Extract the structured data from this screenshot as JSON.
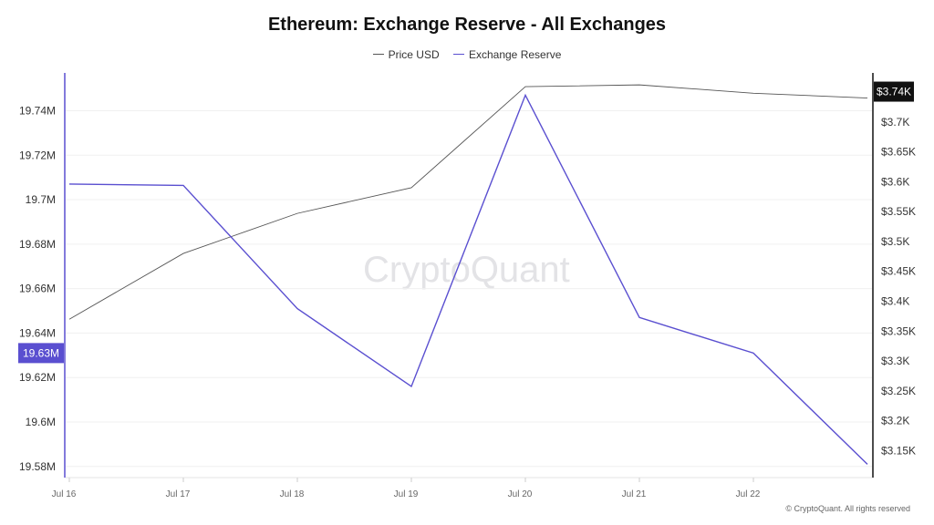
{
  "chart_data": {
    "type": "line",
    "title": "Ethereum: Exchange Reserve - All Exchanges",
    "categories": [
      "Jul 16",
      "Jul 17",
      "Jul 18",
      "Jul 19",
      "Jul 20",
      "Jul 21",
      "Jul 22",
      ""
    ],
    "series": [
      {
        "name": "Price USD",
        "axis": "right",
        "color": "#555555",
        "values": [
          3370,
          3480,
          3547,
          3590,
          3759,
          3762,
          3748,
          3740
        ]
      },
      {
        "name": "Exchange Reserve",
        "axis": "left",
        "color": "#5a4fd0",
        "values": [
          19707000,
          19706400,
          19651000,
          19616000,
          19747000,
          19647000,
          19631000,
          19581000
        ]
      }
    ],
    "left_axis": {
      "ylim": [
        19575000,
        19757000
      ],
      "ticks": [
        19580000,
        19600000,
        19620000,
        19640000,
        19660000,
        19680000,
        19700000,
        19720000,
        19740000
      ],
      "tick_labels": [
        "19.58M",
        "19.6M",
        "19.62M",
        "19.64M",
        "19.66M",
        "19.68M",
        "19.7M",
        "19.72M",
        "19.74M"
      ],
      "current_label": "19.63M",
      "current_value": 19631000
    },
    "right_axis": {
      "ylim": [
        3105,
        3782
      ],
      "ticks": [
        3150,
        3200,
        3250,
        3300,
        3350,
        3400,
        3450,
        3500,
        3550,
        3600,
        3650,
        3700
      ],
      "tick_labels": [
        "$3.15K",
        "$3.2K",
        "$3.25K",
        "$3.3K",
        "$3.35K",
        "$3.4K",
        "$3.45K",
        "$3.5K",
        "$3.55K",
        "$3.6K",
        "$3.65K",
        "$3.7K"
      ],
      "current_label": "$3.74K",
      "current_value": 3740
    },
    "grid": true,
    "legend_position": "top-center"
  },
  "watermark": "CryptoQuant",
  "copyright": "© CryptoQuant. All rights reserved"
}
